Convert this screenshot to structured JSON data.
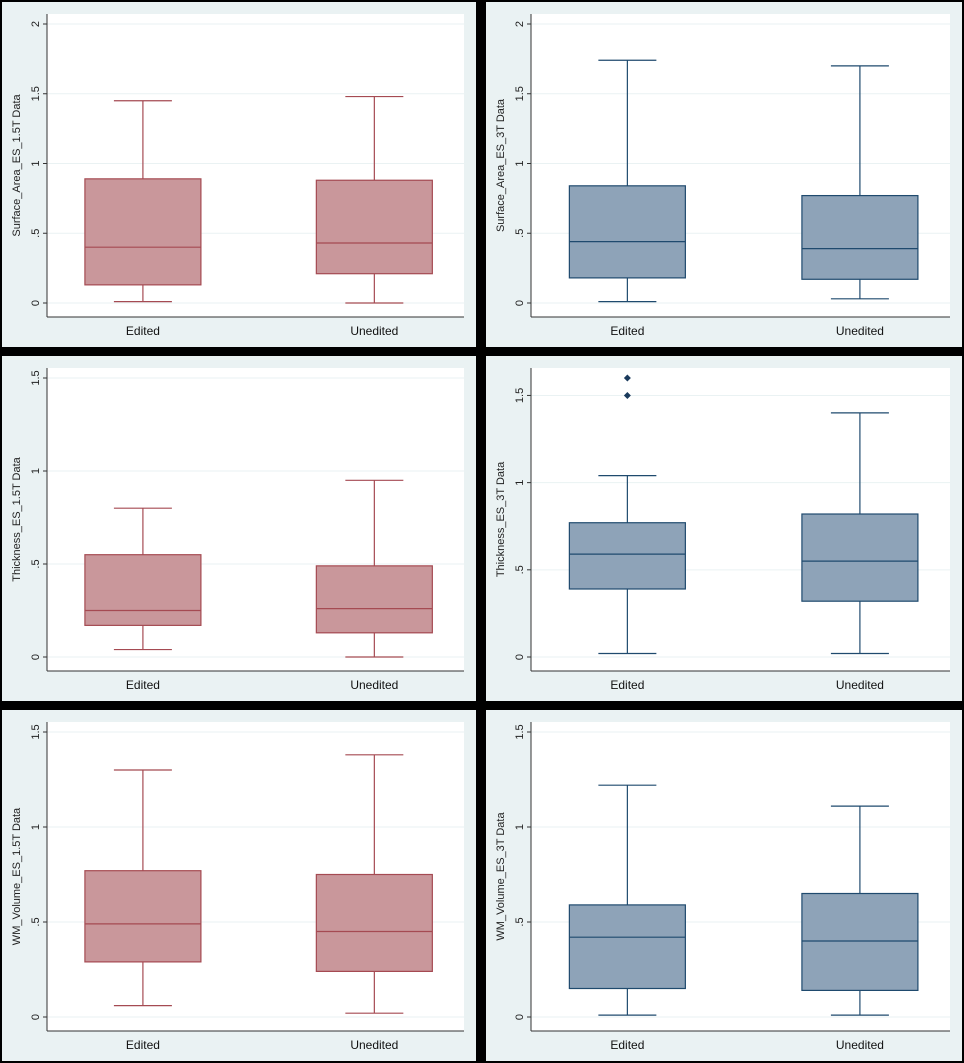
{
  "chart_data": [
    {
      "type": "box",
      "ylabel": "Surface_Area_ES_1.5T Data",
      "ylim": [
        0,
        2
      ],
      "yticks": [
        0,
        0.5,
        1,
        1.5,
        2
      ],
      "ytick_labels": [
        "0",
        ".5",
        "1",
        "1.5",
        "2"
      ],
      "color": "#c9979b",
      "line_color": "#a54a52",
      "categories": [
        "Edited",
        "Unedited"
      ],
      "boxes": [
        {
          "name": "Edited",
          "min": 0.01,
          "q1": 0.13,
          "median": 0.4,
          "q3": 0.89,
          "max": 1.45,
          "outliers": []
        },
        {
          "name": "Unedited",
          "min": 0.0,
          "q1": 0.21,
          "median": 0.43,
          "q3": 0.88,
          "max": 1.48,
          "outliers": []
        }
      ]
    },
    {
      "type": "box",
      "ylabel": "Surface_Area_ES_3T Data",
      "ylim": [
        0,
        2
      ],
      "yticks": [
        0,
        0.5,
        1,
        1.5,
        2
      ],
      "ytick_labels": [
        "0",
        ".5",
        "1",
        "1.5",
        "2"
      ],
      "color": "#8ea3b8",
      "line_color": "#1f4a6e",
      "categories": [
        "Edited",
        "Unedited"
      ],
      "boxes": [
        {
          "name": "Edited",
          "min": 0.01,
          "q1": 0.18,
          "median": 0.44,
          "q3": 0.84,
          "max": 1.74,
          "outliers": []
        },
        {
          "name": "Unedited",
          "min": 0.03,
          "q1": 0.17,
          "median": 0.39,
          "q3": 0.77,
          "max": 1.7,
          "outliers": []
        }
      ]
    },
    {
      "type": "box",
      "ylabel": "Thickness_ES_1.5T Data",
      "ylim": [
        0,
        1.5
      ],
      "yticks": [
        0,
        0.5,
        1,
        1.5
      ],
      "ytick_labels": [
        "0",
        ".5",
        "1",
        "1.5"
      ],
      "color": "#c9979b",
      "line_color": "#a54a52",
      "categories": [
        "Edited",
        "Unedited"
      ],
      "boxes": [
        {
          "name": "Edited",
          "min": 0.04,
          "q1": 0.17,
          "median": 0.25,
          "q3": 0.55,
          "max": 0.8,
          "outliers": []
        },
        {
          "name": "Unedited",
          "min": 0.0,
          "q1": 0.13,
          "median": 0.26,
          "q3": 0.49,
          "max": 0.95,
          "outliers": []
        }
      ]
    },
    {
      "type": "box",
      "ylabel": "Thickness_ES_3T Data",
      "ylim": [
        0,
        1.6
      ],
      "yticks": [
        0,
        0.5,
        1,
        1.5
      ],
      "ytick_labels": [
        "0",
        ".5",
        "1",
        "1.5"
      ],
      "color": "#8ea3b8",
      "line_color": "#1f4a6e",
      "categories": [
        "Edited",
        "Unedited"
      ],
      "boxes": [
        {
          "name": "Edited",
          "min": 0.02,
          "q1": 0.39,
          "median": 0.59,
          "q3": 0.77,
          "max": 1.04,
          "outliers": [
            1.5,
            1.6
          ]
        },
        {
          "name": "Unedited",
          "min": 0.02,
          "q1": 0.32,
          "median": 0.55,
          "q3": 0.82,
          "max": 1.4,
          "outliers": []
        }
      ]
    },
    {
      "type": "box",
      "ylabel": "WM_Volume_ES_1.5T Data",
      "ylim": [
        0,
        1.5
      ],
      "yticks": [
        0,
        0.5,
        1,
        1.5
      ],
      "ytick_labels": [
        "0",
        ".5",
        "1",
        "1.5"
      ],
      "color": "#c9979b",
      "line_color": "#a54a52",
      "categories": [
        "Edited",
        "Unedited"
      ],
      "boxes": [
        {
          "name": "Edited",
          "min": 0.06,
          "q1": 0.29,
          "median": 0.49,
          "q3": 0.77,
          "max": 1.3,
          "outliers": []
        },
        {
          "name": "Unedited",
          "min": 0.02,
          "q1": 0.24,
          "median": 0.45,
          "q3": 0.75,
          "max": 1.38,
          "outliers": []
        }
      ]
    },
    {
      "type": "box",
      "ylabel": "WM_Volume_ES_3T Data",
      "ylim": [
        0,
        1.5
      ],
      "yticks": [
        0,
        0.5,
        1,
        1.5
      ],
      "ytick_labels": [
        "0",
        ".5",
        "1",
        "1.5"
      ],
      "color": "#8ea3b8",
      "line_color": "#1f4a6e",
      "categories": [
        "Edited",
        "Unedited"
      ],
      "boxes": [
        {
          "name": "Edited",
          "min": 0.01,
          "q1": 0.15,
          "median": 0.42,
          "q3": 0.59,
          "max": 1.22,
          "outliers": []
        },
        {
          "name": "Unedited",
          "min": 0.01,
          "q1": 0.14,
          "median": 0.4,
          "q3": 0.65,
          "max": 1.11,
          "outliers": []
        }
      ]
    }
  ]
}
